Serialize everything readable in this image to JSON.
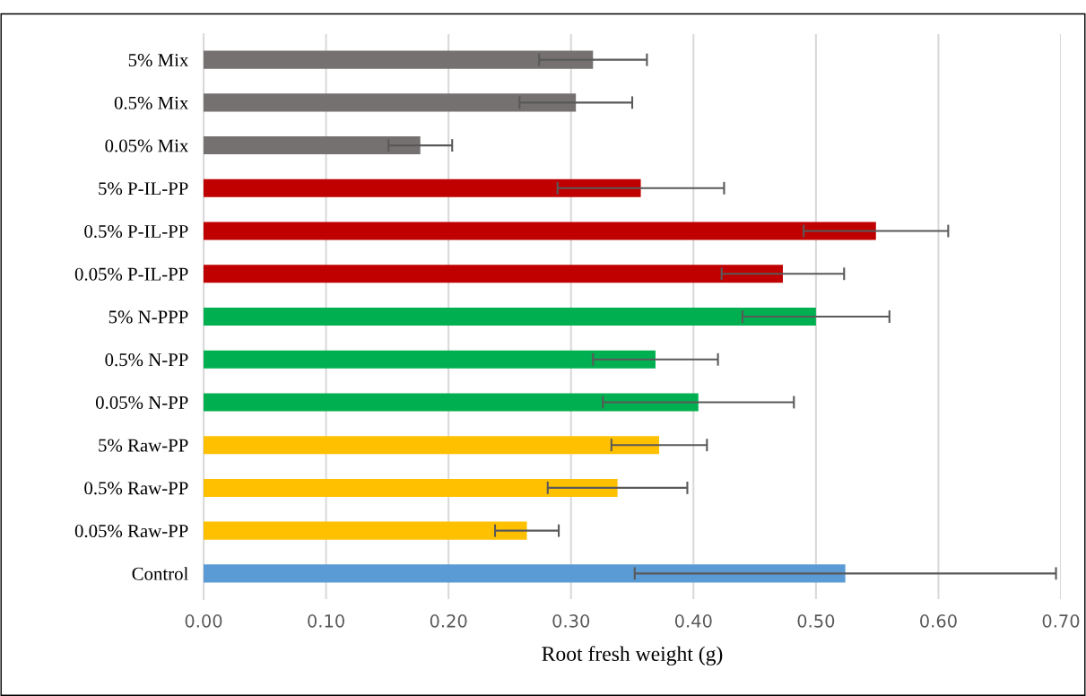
{
  "chart_data": {
    "type": "bar",
    "orientation": "horizontal",
    "xlabel": "Root fresh weight (g)",
    "categories": [
      "5% Mix",
      "0.5% Mix",
      "0.05% Mix",
      "5% P-IL-PP",
      "0.5% P-IL-PP",
      "0.05% P-IL-PP",
      "5% N-PPP",
      "0.5% N-PP",
      "0.05% N-PP",
      "5% Raw-PP",
      "0.5% Raw-PP",
      "0.05% Raw-PP",
      "Control"
    ],
    "values": [
      0.318,
      0.304,
      0.177,
      0.357,
      0.549,
      0.473,
      0.5,
      0.369,
      0.404,
      0.372,
      0.338,
      0.264,
      0.524
    ],
    "errors": [
      0.044,
      0.046,
      0.026,
      0.068,
      0.059,
      0.05,
      0.06,
      0.051,
      0.078,
      0.039,
      0.057,
      0.026,
      0.172
    ],
    "colors": [
      "#767171",
      "#767171",
      "#767171",
      "#c00000",
      "#c00000",
      "#c00000",
      "#00b050",
      "#00b050",
      "#00b050",
      "#ffc000",
      "#ffc000",
      "#ffc000",
      "#5b9bd5"
    ],
    "xlim": [
      0,
      0.7
    ],
    "xticks": [
      {
        "value": 0,
        "label": "0.00"
      },
      {
        "value": 0.1,
        "label": "0.10"
      },
      {
        "value": 0.2,
        "label": "0.20"
      },
      {
        "value": 0.3,
        "label": "0.30"
      },
      {
        "value": 0.4,
        "label": "0.40"
      },
      {
        "value": 0.5,
        "label": "0.50"
      },
      {
        "value": 0.6,
        "label": "0.60"
      },
      {
        "value": 0.7,
        "label": "0.70"
      }
    ],
    "grid": "x"
  }
}
